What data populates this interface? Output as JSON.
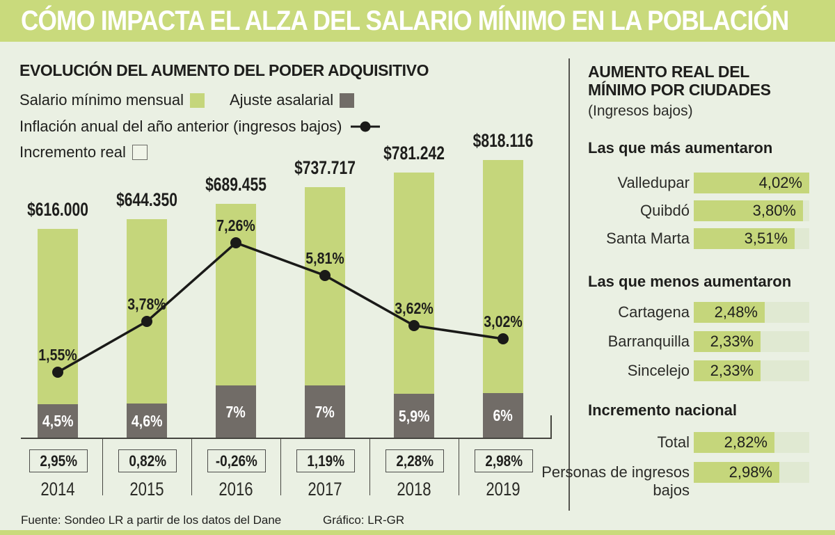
{
  "header": {
    "title": "CÓMO IMPACTA EL ALZA DEL SALARIO MÍNIMO EN LA POBLACIÓN"
  },
  "left": {
    "title": "EVOLUCIÓN DEL AUMENTO DEL PODER ADQUISITIVO",
    "legend": {
      "salary": "Salario mínimo mensual",
      "adjustment": "Ajuste asalarial",
      "inflation": "Inflación anual del año anterior (ingresos bajos)",
      "real": "Incremento real"
    },
    "source": "Fuente: Sondeo LR a partir de los datos del Dane",
    "credit": "Gráfico: LR-GR"
  },
  "chart_data": {
    "type": "bar+line",
    "categories": [
      "2014",
      "2015",
      "2016",
      "2017",
      "2018",
      "2019"
    ],
    "series": [
      {
        "name": "Salario mínimo mensual",
        "role": "bar",
        "values": [
          616000,
          644350,
          689455,
          737717,
          781242,
          818116
        ],
        "labels": [
          "$616.000",
          "$644.350",
          "$689.455",
          "$737.717",
          "$781.242",
          "$818.116"
        ]
      },
      {
        "name": "Ajuste asalarial",
        "role": "bar-overlay",
        "values": [
          4.5,
          4.6,
          7,
          7,
          5.9,
          6
        ],
        "labels": [
          "4,5%",
          "4,6%",
          "7%",
          "7%",
          "5,9%",
          "6%"
        ]
      },
      {
        "name": "Inflación anual del año anterior (ingresos bajos)",
        "role": "line",
        "values": [
          1.55,
          3.78,
          7.26,
          5.81,
          3.62,
          3.02
        ],
        "labels": [
          "1,55%",
          "3,78%",
          "7,26%",
          "5,81%",
          "3,62%",
          "3,02%"
        ]
      },
      {
        "name": "Incremento real",
        "role": "boxed-values",
        "values": [
          2.95,
          0.82,
          -0.26,
          1.19,
          2.28,
          2.98
        ],
        "labels": [
          "2,95%",
          "0,82%",
          "-0,26%",
          "1,19%",
          "2,28%",
          "2,98%"
        ]
      }
    ],
    "legend_position": "top-left",
    "grid": false
  },
  "right": {
    "title_line1": "AUMENTO REAL DEL",
    "title_line2": "MÍNIMO POR CIUDADES",
    "subtitle": "(Ingresos bajos)",
    "scale_max_pct": 4.02,
    "sections": [
      {
        "heading": "Las que más aumentaron",
        "rows": [
          {
            "label": "Valledupar",
            "value": "4,02%",
            "pct": 4.02
          },
          {
            "label": "Quibdó",
            "value": "3,80%",
            "pct": 3.8
          },
          {
            "label": "Santa Marta",
            "value": "3,51%",
            "pct": 3.51
          }
        ]
      },
      {
        "heading": "Las que menos aumentaron",
        "rows": [
          {
            "label": "Cartagena",
            "value": "2,48%",
            "pct": 2.48
          },
          {
            "label": "Barranquilla",
            "value": "2,33%",
            "pct": 2.33
          },
          {
            "label": "Sincelejo",
            "value": "2,33%",
            "pct": 2.33
          }
        ]
      },
      {
        "heading": "Incremento nacional",
        "rows": [
          {
            "label": "Total",
            "value": "2,82%",
            "pct": 2.82
          },
          {
            "label": "Personas de ingresos bajos",
            "value": "2,98%",
            "pct": 2.98
          }
        ]
      }
    ]
  },
  "colors": {
    "banner_green": "#c9da7c",
    "bar_green": "#c5d67b",
    "adjustment_gray": "#716c67",
    "background": "#eaf0e3",
    "track_pale": "#e0e9d2",
    "line_black": "#1a1a18"
  }
}
